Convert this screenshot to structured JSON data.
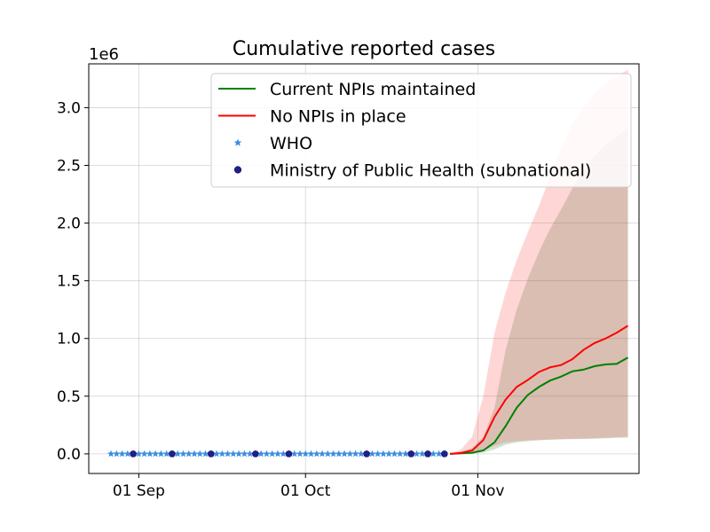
{
  "chart_data": {
    "type": "line",
    "title": "Cumulative reported cases",
    "xlabel": "",
    "ylabel": "",
    "y_offset_label": "1e6",
    "y_scale_factor": 1000000,
    "ylim": [
      -0.17,
      3.38
    ],
    "xlim": [
      "2020-08-23",
      "2020-11-30"
    ],
    "y_ticks": [
      0.0,
      0.5,
      1.0,
      1.5,
      2.0,
      2.5,
      3.0
    ],
    "y_tick_labels": [
      "0.0",
      "0.5",
      "1.0",
      "1.5",
      "2.0",
      "2.5",
      "3.0"
    ],
    "x_ticks": [
      "2020-09-01",
      "2020-10-01",
      "2020-11-01"
    ],
    "x_tick_labels": [
      "01 Sep",
      "01 Oct",
      "01 Nov"
    ],
    "grid": true,
    "legend_position": "upper-right",
    "legend": [
      {
        "label": "Current NPIs maintained",
        "kind": "line",
        "color": "#008000"
      },
      {
        "label": "No NPIs in place",
        "kind": "line",
        "color": "#ff0000"
      },
      {
        "label": "WHO",
        "kind": "star",
        "color": "#3b8fe0"
      },
      {
        "label": "Ministry of Public Health (subnational)",
        "kind": "dot",
        "color": "#1f1f8f"
      }
    ],
    "series": [
      {
        "name": "Current NPIs maintained",
        "color": "#008000",
        "x": [
          "2020-10-27",
          "2020-10-29",
          "2020-10-31",
          "2020-11-02",
          "2020-11-04",
          "2020-11-06",
          "2020-11-08",
          "2020-11-10",
          "2020-11-12",
          "2020-11-14",
          "2020-11-16",
          "2020-11-18",
          "2020-11-20",
          "2020-11-22",
          "2020-11-24",
          "2020-11-26",
          "2020-11-28"
        ],
        "y": [
          0.0,
          0.005,
          0.01,
          0.03,
          0.1,
          0.24,
          0.4,
          0.51,
          0.58,
          0.635,
          0.67,
          0.715,
          0.73,
          0.76,
          0.775,
          0.78,
          0.835
        ],
        "lower": [
          0.0,
          0.002,
          0.005,
          0.01,
          0.04,
          0.08,
          0.1,
          0.11,
          0.118,
          0.122,
          0.126,
          0.128,
          0.13,
          0.132,
          0.135,
          0.138,
          0.14
        ],
        "upper": [
          0.0,
          0.02,
          0.05,
          0.15,
          0.4,
          0.9,
          1.25,
          1.52,
          1.75,
          1.95,
          2.12,
          2.3,
          2.45,
          2.58,
          2.68,
          2.75,
          2.83
        ]
      },
      {
        "name": "No NPIs in place",
        "color": "#ff0000",
        "x": [
          "2020-10-27",
          "2020-10-29",
          "2020-10-31",
          "2020-11-02",
          "2020-11-04",
          "2020-11-06",
          "2020-11-08",
          "2020-11-10",
          "2020-11-12",
          "2020-11-14",
          "2020-11-16",
          "2020-11-18",
          "2020-11-20",
          "2020-11-22",
          "2020-11-24",
          "2020-11-26",
          "2020-11-28"
        ],
        "y": [
          0.0,
          0.008,
          0.03,
          0.12,
          0.32,
          0.47,
          0.58,
          0.64,
          0.71,
          0.75,
          0.77,
          0.82,
          0.9,
          0.96,
          1.0,
          1.05,
          1.11
        ],
        "lower": [
          0.0,
          0.003,
          0.01,
          0.03,
          0.07,
          0.1,
          0.11,
          0.118,
          0.12,
          0.125,
          0.128,
          0.13,
          0.132,
          0.135,
          0.14,
          0.145,
          0.15
        ],
        "upper": [
          0.0,
          0.04,
          0.15,
          0.5,
          1.05,
          1.4,
          1.68,
          1.92,
          2.15,
          2.4,
          2.65,
          2.85,
          3.0,
          3.12,
          3.21,
          3.27,
          3.33
        ]
      }
    ],
    "observations": [
      {
        "name": "WHO",
        "color": "#3b8fe0",
        "x_start": "2020-08-27",
        "x_end": "2020-10-26",
        "step_days": 1,
        "y": 0.0
      },
      {
        "name": "Ministry of Public Health (subnational)",
        "color": "#1f1f8f",
        "x": [
          "2020-08-31",
          "2020-09-07",
          "2020-09-14",
          "2020-09-22",
          "2020-09-28",
          "2020-10-12",
          "2020-10-20",
          "2020-10-23",
          "2020-10-26"
        ],
        "y": [
          0,
          0,
          0,
          0,
          0,
          0,
          0,
          0,
          0
        ]
      }
    ]
  }
}
